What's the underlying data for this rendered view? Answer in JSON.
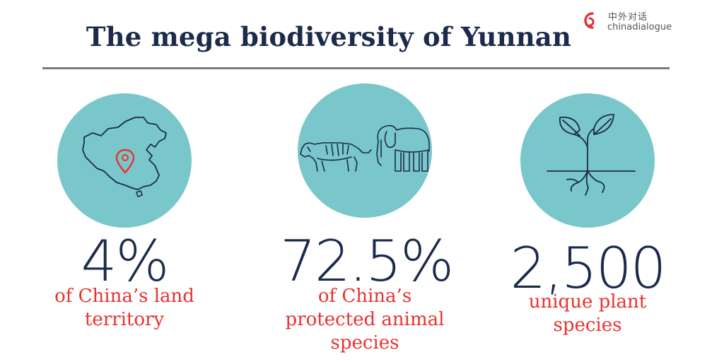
{
  "title": "The mega biodiversity of Yunnan",
  "logo": {
    "chinese": "中外对话",
    "english": "chinadialogue"
  },
  "colors": {
    "navy": "#1b2b4b",
    "red": "#e8322f",
    "teal": "#7ac7cb",
    "divider": "#7a7a7a"
  },
  "stats": [
    {
      "value": "4%",
      "caption_lines": [
        "of China’s land",
        "territory"
      ],
      "icon": "china-map-with-pin-icon"
    },
    {
      "value": "72.5%",
      "caption_lines": [
        "of China’s",
        "protected animal",
        "species"
      ],
      "icon": "tiger-and-elephant-icon"
    },
    {
      "value": "2,500",
      "caption_lines": [
        "unique plant",
        "species"
      ],
      "icon": "sprouting-plant-icon"
    }
  ]
}
